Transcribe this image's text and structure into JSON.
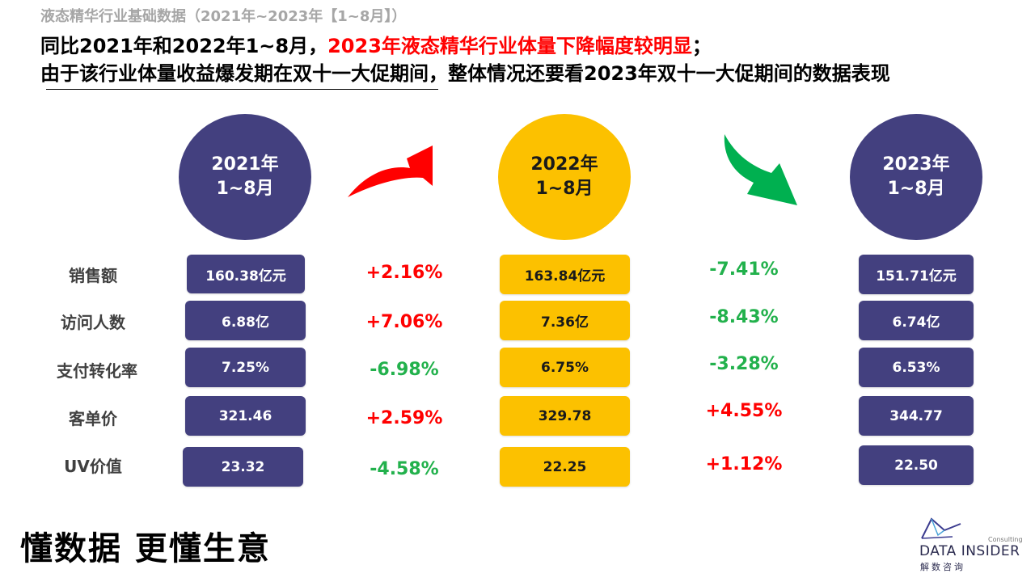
{
  "header": {
    "subtitle": "液态精华行业基础数据（2021年~2023年【1~8月】）",
    "line1_black": "同比2021年和2022年1~8月，",
    "line1_red": "2023年液态精华行业体量下降幅度较明显",
    "line1_end": "；",
    "line2": "由于该行业体量收益爆发期在双十一大促期间，整体情况还要看2023年双十一大促期间的数据表现"
  },
  "periods": [
    {
      "year": "2021年",
      "range": "1~8月"
    },
    {
      "year": "2022年",
      "range": "1~8月"
    },
    {
      "year": "2023年",
      "range": "1~8月"
    }
  ],
  "metrics": [
    "销售额",
    "访问人数",
    "支付转化率",
    "客单价",
    "UV价值"
  ],
  "values_2021": [
    "160.38亿元",
    "6.88亿",
    "7.25%",
    "321.46",
    "23.32"
  ],
  "values_2022": [
    "163.84亿元",
    "7.36亿",
    "6.75%",
    "329.78",
    "22.25"
  ],
  "values_2023": [
    "151.71亿元",
    "6.74亿",
    "6.53%",
    "344.77",
    "22.50"
  ],
  "change_21_22": [
    "+2.16%",
    "+7.06%",
    "-6.98%",
    "+2.59%",
    "-4.58%"
  ],
  "change_22_23": [
    "-7.41%",
    "-8.43%",
    "-3.28%",
    "+4.55%",
    "+1.12%"
  ],
  "colors": {
    "purple": "#43407f",
    "yellow": "#fcc100",
    "increase": "#ff0000",
    "decrease": "#22b14c"
  },
  "icons": {
    "arrow_up": "red-up-arrow-icon",
    "arrow_down": "green-down-arrow-icon"
  },
  "footer": {
    "slogan": "懂数据 更懂生意",
    "logo_small": "Consulting",
    "logo_en": "DATA INSIDER",
    "logo_cn": "解数咨询"
  }
}
